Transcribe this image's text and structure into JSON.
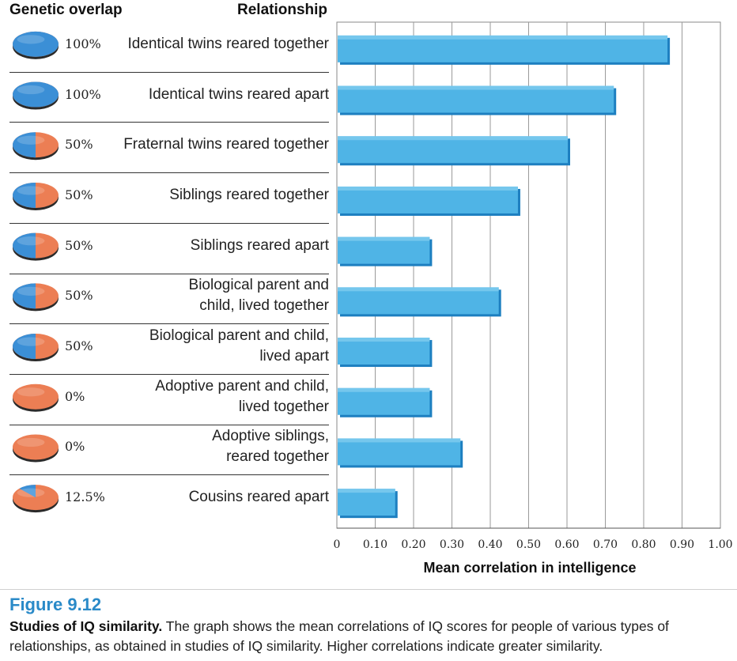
{
  "headers": {
    "genetic_overlap": "Genetic overlap",
    "relationship": "Relationship"
  },
  "colors": {
    "pie_blue": "#3b8fd6",
    "pie_orange": "#ec7e54",
    "bar_fill": "#4fb4e6",
    "bar_edge": "#1d7fc0",
    "figure_label": "#2a8ac8"
  },
  "chart_data": {
    "type": "bar",
    "orientation": "horizontal",
    "categories": [
      {
        "overlap": "100%",
        "overlap_value": 1.0,
        "label_lines": [
          "Identical twins reared together"
        ]
      },
      {
        "overlap": "100%",
        "overlap_value": 1.0,
        "label_lines": [
          "Identical twins reared apart"
        ]
      },
      {
        "overlap": "50%",
        "overlap_value": 0.5,
        "label_lines": [
          "Fraternal twins reared together"
        ]
      },
      {
        "overlap": "50%",
        "overlap_value": 0.5,
        "label_lines": [
          "Siblings reared together"
        ]
      },
      {
        "overlap": "50%",
        "overlap_value": 0.5,
        "label_lines": [
          "Siblings reared apart"
        ]
      },
      {
        "overlap": "50%",
        "overlap_value": 0.5,
        "label_lines": [
          "Biological parent and",
          "child, lived together"
        ]
      },
      {
        "overlap": "50%",
        "overlap_value": 0.5,
        "label_lines": [
          "Biological parent and child,",
          "lived apart"
        ]
      },
      {
        "overlap": "0%",
        "overlap_value": 0.0,
        "label_lines": [
          "Adoptive parent and child,",
          "lived together"
        ]
      },
      {
        "overlap": "0%",
        "overlap_value": 0.0,
        "label_lines": [
          "Adoptive siblings,",
          "reared together"
        ]
      },
      {
        "overlap": "12.5%",
        "overlap_value": 0.125,
        "label_lines": [
          "Cousins reared apart"
        ]
      }
    ],
    "values": [
      0.86,
      0.72,
      0.6,
      0.47,
      0.24,
      0.42,
      0.24,
      0.24,
      0.32,
      0.15
    ],
    "xlim": [
      0,
      1.0
    ],
    "ticks": [
      "0",
      "0.10",
      "0.20",
      "0.30",
      "0.40",
      "0.50",
      "0.60",
      "0.70",
      "0.80",
      "0.90",
      "1.00"
    ],
    "xlabel": "Mean correlation in intelligence",
    "grid": true
  },
  "caption": {
    "figure_number": "Figure 9.12",
    "title": "Studies of IQ similarity.",
    "text": " The graph shows the mean correlations of IQ scores for people of various types of relationships, as obtained in studies of IQ similarity. Higher correlations indicate greater similarity."
  }
}
